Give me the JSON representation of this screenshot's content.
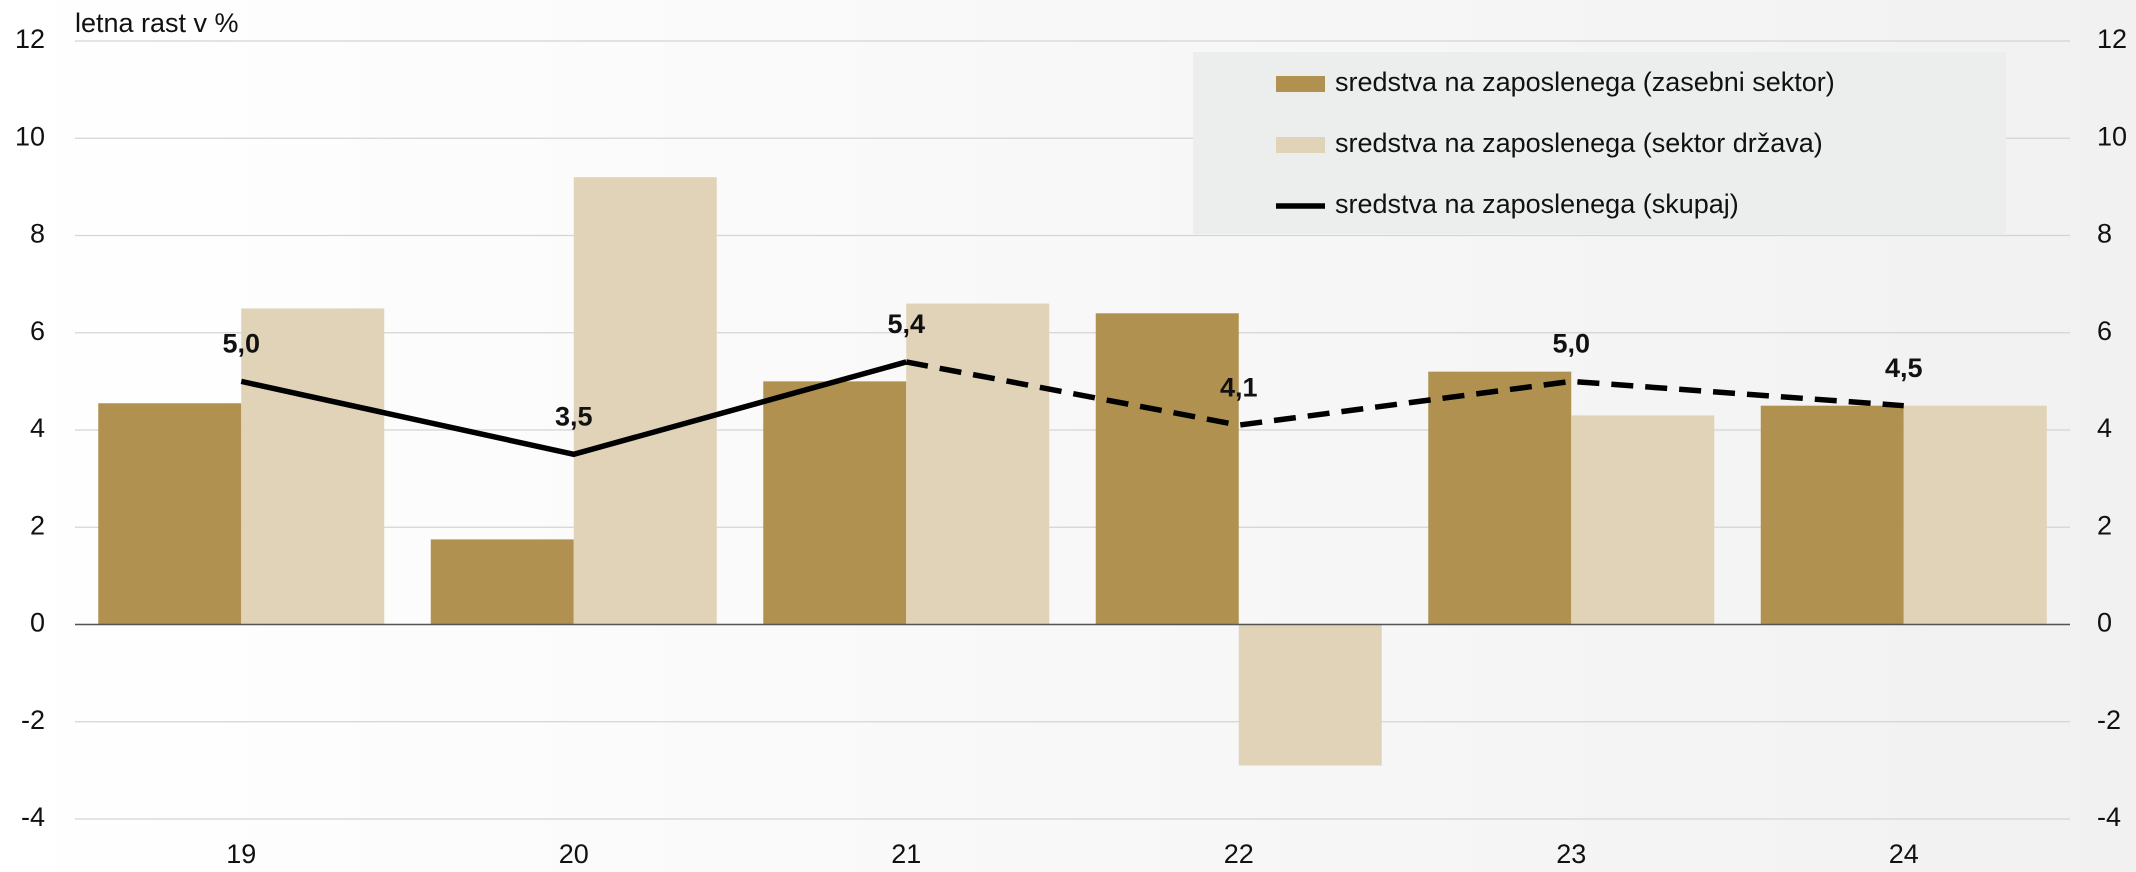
{
  "chart_data": {
    "type": "bar",
    "y_label": "letna rast v %",
    "categories": [
      "19",
      "20",
      "21",
      "22",
      "23",
      "24"
    ],
    "series": [
      {
        "name": "sredstva na zaposlenega (zasebni sektor)",
        "type": "bar",
        "color": "#b09150",
        "values": [
          4.55,
          1.75,
          5.0,
          6.4,
          5.2,
          4.5
        ]
      },
      {
        "name": "sredstva na zaposlenega (sektor država)",
        "type": "bar",
        "color": "#e0d3b8",
        "values": [
          6.5,
          9.2,
          6.6,
          -2.9,
          4.3,
          4.5
        ]
      },
      {
        "name": "sredstva na zaposlenega (skupaj)",
        "type": "line",
        "color": "#000000",
        "values": [
          5.0,
          3.5,
          5.4,
          4.1,
          5.0,
          4.5
        ],
        "value_labels": [
          "5,0",
          "3,5",
          "5,4",
          "4,1",
          "5,0",
          "4,5"
        ],
        "dashed_from": 2
      }
    ],
    "ylim": [
      -4,
      12
    ],
    "yticks": [
      -4,
      -2,
      0,
      2,
      4,
      6,
      8,
      10,
      12
    ],
    "y2lim": [
      -4,
      12
    ],
    "y2ticks": [
      -4,
      -2,
      0,
      2,
      4,
      6,
      8,
      10,
      12
    ],
    "grid": true,
    "legend": "top-right"
  }
}
